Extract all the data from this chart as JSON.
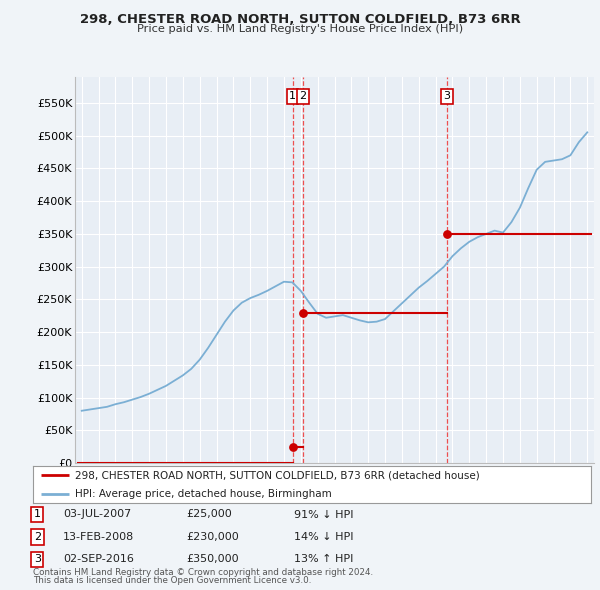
{
  "title1": "298, CHESTER ROAD NORTH, SUTTON COLDFIELD, B73 6RR",
  "title2": "Price paid vs. HM Land Registry's House Price Index (HPI)",
  "ylabel_ticks": [
    "£0",
    "£50K",
    "£100K",
    "£150K",
    "£200K",
    "£250K",
    "£300K",
    "£350K",
    "£400K",
    "£450K",
    "£500K",
    "£550K"
  ],
  "ytick_values": [
    0,
    50000,
    100000,
    150000,
    200000,
    250000,
    300000,
    350000,
    400000,
    450000,
    500000,
    550000
  ],
  "xlim_min": 1994.6,
  "xlim_max": 2025.4,
  "ylim_min": 0,
  "ylim_max": 590000,
  "hpi_color": "#7bafd4",
  "price_color": "#cc0000",
  "vline_color": "#ee3333",
  "legend_label1": "298, CHESTER ROAD NORTH, SUTTON COLDFIELD, B73 6RR (detached house)",
  "legend_label2": "HPI: Average price, detached house, Birmingham",
  "table_data": [
    [
      "1",
      "03-JUL-2007",
      "£25,000",
      "91% ↓ HPI"
    ],
    [
      "2",
      "13-FEB-2008",
      "£230,000",
      "14% ↓ HPI"
    ],
    [
      "3",
      "02-SEP-2016",
      "£350,000",
      "13% ↑ HPI"
    ]
  ],
  "footnote1": "Contains HM Land Registry data © Crown copyright and database right 2024.",
  "footnote2": "This data is licensed under the Open Government Licence v3.0.",
  "background_color": "#f0f4f8",
  "plot_bg_color": "#e8eef5",
  "grid_color": "#ffffff",
  "label_box_color": "#cc0000",
  "trans_dates": [
    2007.508,
    2008.12,
    2016.67
  ],
  "trans_prices": [
    25000,
    230000,
    350000
  ],
  "trans_labels": [
    "1",
    "2",
    "3"
  ]
}
